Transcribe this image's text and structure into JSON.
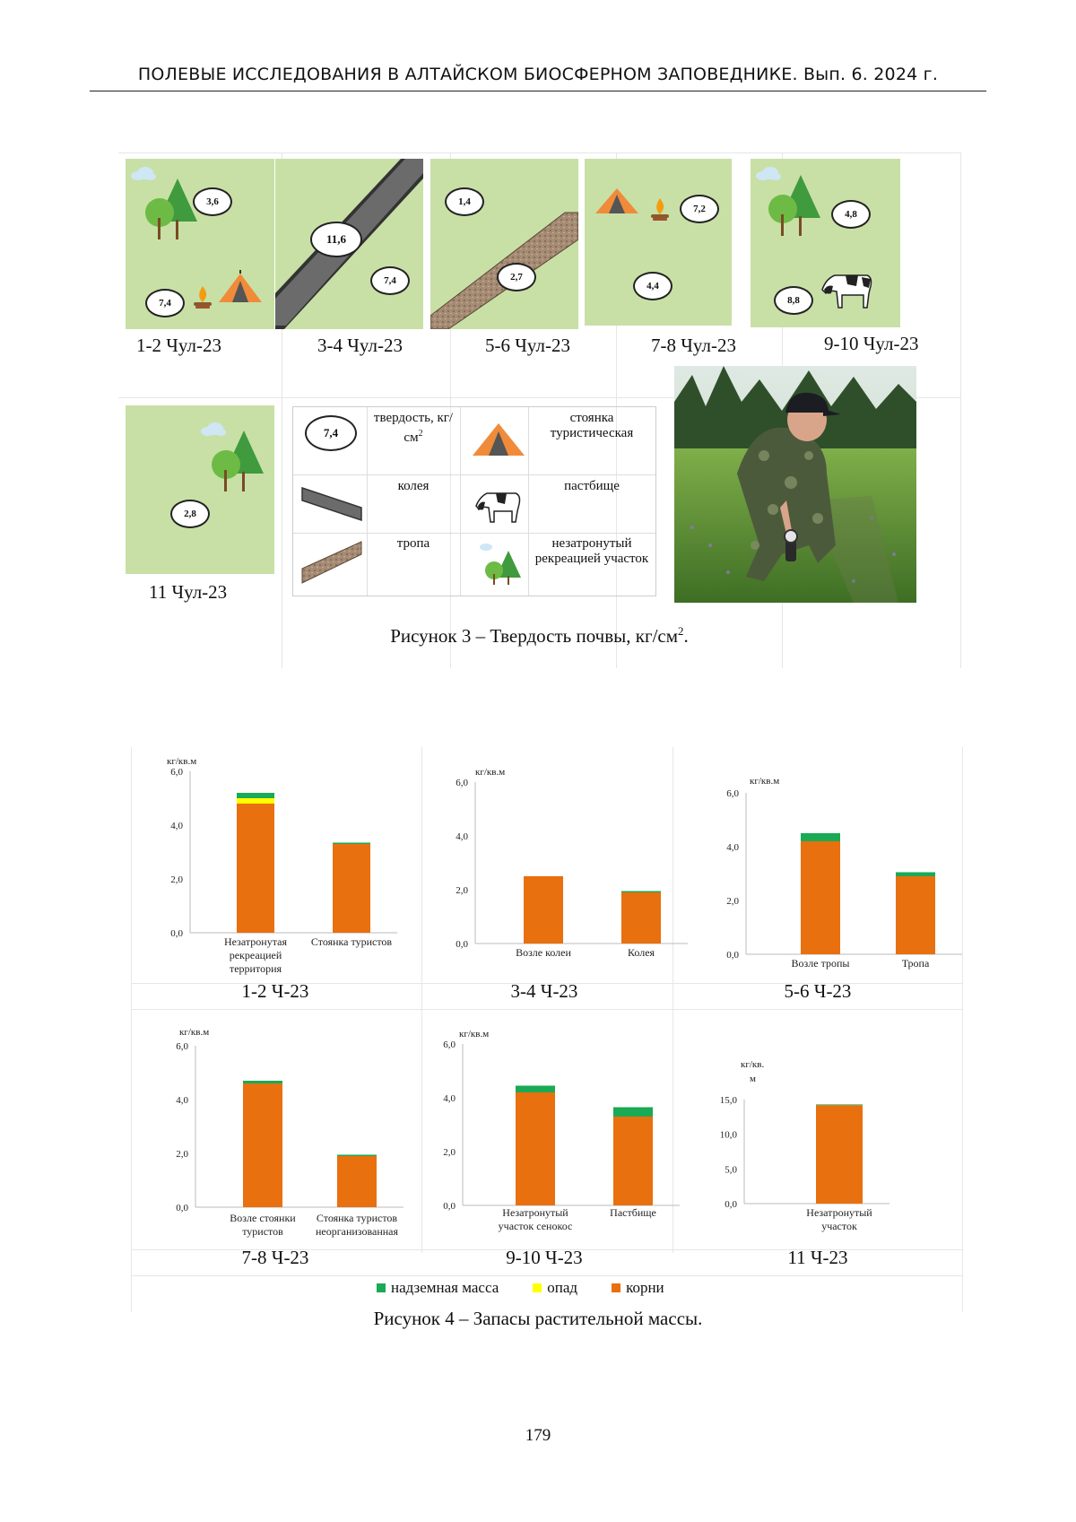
{
  "running_header": "ПОЛЕВЫЕ ИССЛЕДОВАНИЯ В АЛТАЙСКОМ БИОСФЕРНОМ ЗАПОВЕДНИКЕ. Вып. 6. 2024 г.",
  "figure3": {
    "caption_prefix": "Рисунок 3 – Твердость почвы, кг/см",
    "caption_sup": "2",
    "caption_suffix": ".",
    "panels": [
      {
        "label": "1-2 Чул-23",
        "values": [
          "3,6",
          "7,4"
        ]
      },
      {
        "label": "3-4 Чул-23",
        "values": [
          "11,6",
          "7,4"
        ]
      },
      {
        "label": "5-6 Чул-23",
        "values": [
          "1,4",
          "2,7"
        ]
      },
      {
        "label": "7-8 Чул-23",
        "values": [
          "7,2",
          "4,4"
        ]
      },
      {
        "label": "9-10 Чул-23",
        "values": [
          "4,8",
          "8,8"
        ]
      },
      {
        "label": "11 Чул-23",
        "values": [
          "2,8"
        ]
      }
    ],
    "legend": {
      "sample_value": "7,4",
      "hardness": "твердость, кг/см",
      "hardness_sup": "2",
      "rut": "колея",
      "trail": "тропа",
      "camp": "стоянка туристическая",
      "pasture": "пастбище",
      "untouched": "незатронутый рекреацией участок"
    }
  },
  "figure4": {
    "caption": "Рисунок 4 – Запасы растительной массы.",
    "legend": {
      "aboveground": "надземная масса",
      "litter": "опад",
      "roots": "корни"
    },
    "colors": {
      "aboveground": "#1aaa55",
      "litter": "#ffff00",
      "roots": "#e8700f"
    }
  },
  "chart_data": [
    {
      "type": "bar",
      "title": "1-2 Ч-23",
      "ylabel": "кг/кв.м",
      "ylim": [
        0,
        6
      ],
      "yticks": [
        "0,0",
        "2,0",
        "4,0",
        "6,0"
      ],
      "categories": [
        "Незатронутая рекреацией территория",
        "Стоянка туристов"
      ],
      "series": [
        {
          "name": "корни",
          "values": [
            4.8,
            3.3
          ]
        },
        {
          "name": "опад",
          "values": [
            0.2,
            0
          ]
        },
        {
          "name": "надземная масса",
          "values": [
            0.2,
            0.05
          ]
        }
      ]
    },
    {
      "type": "bar",
      "title": "3-4 Ч-23",
      "ylabel": "кг/кв.м",
      "ylim": [
        0,
        6
      ],
      "yticks": [
        "0,0",
        "2,0",
        "4,0",
        "6,0"
      ],
      "categories": [
        "Возле колеи",
        "Колея"
      ],
      "series": [
        {
          "name": "корни",
          "values": [
            2.5,
            1.9
          ]
        },
        {
          "name": "опад",
          "values": [
            0,
            0
          ]
        },
        {
          "name": "надземная масса",
          "values": [
            0,
            0.05
          ]
        }
      ]
    },
    {
      "type": "bar",
      "title": "5-6 Ч-23",
      "ylabel": "кг/кв.м",
      "ylim": [
        0,
        6
      ],
      "yticks": [
        "0,0",
        "2,0",
        "4,0",
        "6,0"
      ],
      "categories": [
        "Возле тропы",
        "Тропа"
      ],
      "series": [
        {
          "name": "корни",
          "values": [
            4.2,
            2.9
          ]
        },
        {
          "name": "опад",
          "values": [
            0,
            0
          ]
        },
        {
          "name": "надземная масса",
          "values": [
            0.3,
            0.15
          ]
        }
      ]
    },
    {
      "type": "bar",
      "title": "7-8 Ч-23",
      "ylabel": "кг/кв.м",
      "ylim": [
        0,
        6
      ],
      "yticks": [
        "0,0",
        "2,0",
        "4,0",
        "6,0"
      ],
      "categories": [
        "Возле стоянки туристов",
        "Стоянка туристов неорганизованная"
      ],
      "series": [
        {
          "name": "корни",
          "values": [
            4.6,
            1.9
          ]
        },
        {
          "name": "опад",
          "values": [
            0,
            0
          ]
        },
        {
          "name": "надземная масса",
          "values": [
            0.1,
            0.05
          ]
        }
      ]
    },
    {
      "type": "bar",
      "title": "9-10 Ч-23",
      "ylabel": "кг/кв.м",
      "ylim": [
        0,
        6
      ],
      "yticks": [
        "0,0",
        "2,0",
        "4,0",
        "6,0"
      ],
      "categories": [
        "Незатронутый участок сенокос",
        "Пастбище"
      ],
      "series": [
        {
          "name": "корни",
          "values": [
            4.2,
            3.3
          ]
        },
        {
          "name": "опад",
          "values": [
            0,
            0
          ]
        },
        {
          "name": "надземная масса",
          "values": [
            0.25,
            0.35
          ]
        }
      ]
    },
    {
      "type": "bar",
      "title": "11 Ч-23",
      "ylabel": "кг/кв.м",
      "ylim": [
        0,
        15
      ],
      "yticks": [
        "0,0",
        "5,0",
        "10,0",
        "15,0"
      ],
      "categories": [
        "Незатронутый участок"
      ],
      "series": [
        {
          "name": "корни",
          "values": [
            14.2
          ]
        },
        {
          "name": "опад",
          "values": [
            0
          ]
        },
        {
          "name": "надземная масса",
          "values": [
            0.1
          ]
        }
      ]
    }
  ],
  "page_number": "179"
}
